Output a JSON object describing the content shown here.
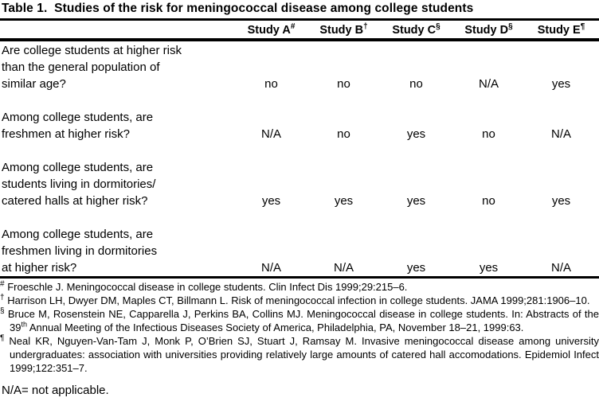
{
  "title": "Table 1.  Studies of the risk for meningococcal disease among college students",
  "table": {
    "header": {
      "studies": [
        {
          "label": "Study A",
          "marker": "#"
        },
        {
          "label": "Study B",
          "marker": "†"
        },
        {
          "label": "Study C",
          "marker": "§"
        },
        {
          "label": "Study D",
          "marker": "§"
        },
        {
          "label": "Study E",
          "marker": "¶"
        }
      ]
    },
    "rows": [
      {
        "question": "Are college students at higher risk\nthan the general population of\nsimilar age?",
        "values": [
          "no",
          "no",
          "no",
          "N/A",
          "yes"
        ]
      },
      {
        "question": "Among college students, are\nfreshmen at higher risk?",
        "values": [
          "N/A",
          "no",
          "yes",
          "no",
          "N/A"
        ]
      },
      {
        "question": "Among college students, are\nstudents living in dormitories/\ncatered halls at higher risk?",
        "values": [
          "yes",
          "yes",
          "yes",
          "no",
          "yes"
        ]
      },
      {
        "question": "Among college students, are\nfreshmen living in dormitories\nat higher risk?",
        "values": [
          "N/A",
          "N/A",
          "yes",
          "yes",
          "N/A"
        ]
      }
    ]
  },
  "footnotes": [
    {
      "marker": "#",
      "text": "Froeschle J. Meningococcal disease in college students. Clin Infect Dis 1999;29:215–6."
    },
    {
      "marker": "†",
      "text": "Harrison LH, Dwyer DM, Maples CT, Billmann L. Risk of meningococcal infection in college students. JAMA 1999;281:1906–10."
    },
    {
      "marker": "§",
      "text_pre": "Bruce M, Rosenstein NE, Capparella J, Perkins BA, Collins MJ. Meningococcal disease in college students. In: Abstracts of the 39",
      "sup": "th",
      "text_post": " Annual Meeting of the Infectious Diseases Society of America, Philadelphia, PA, November 18–21, 1999:63."
    },
    {
      "marker": "¶",
      "text": "Neal KR, Nguyen-Van-Tam J, Monk P, O’Brien SJ, Stuart J, Ramsay M. Invasive meningococcal disease among university undergraduates: association with universities providing relatively large amounts of catered hall accomodations. Epidemiol Infect 1999;122:351–7."
    }
  ],
  "legend": "N/A= not applicable."
}
